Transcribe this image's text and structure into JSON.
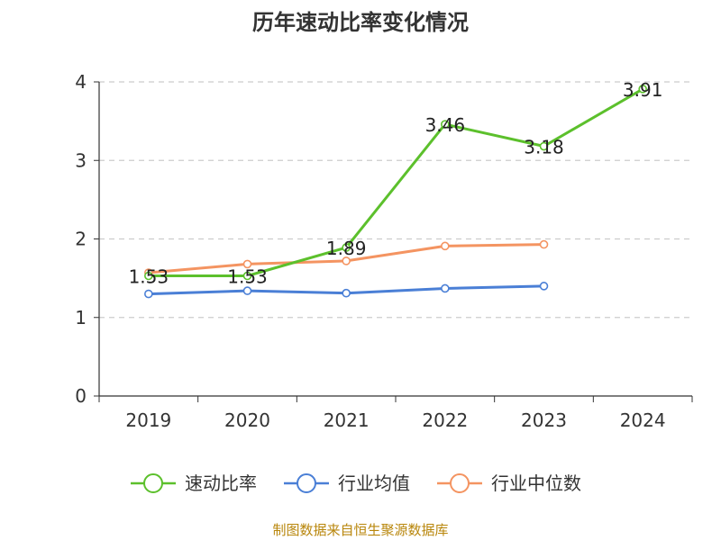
{
  "chart_data": {
    "type": "line",
    "title": "历年速动比率变化情况",
    "categories": [
      "2019",
      "2020",
      "2021",
      "2022",
      "2023",
      "2024"
    ],
    "ylim": [
      0,
      4
    ],
    "yticks": [
      "0",
      "1",
      "2",
      "3",
      "4"
    ],
    "grid": true,
    "legend_position": "bottom",
    "series": [
      {
        "name": "速动比率",
        "color": "#5cc02c",
        "values": [
          1.53,
          1.53,
          1.89,
          3.46,
          3.18,
          3.91
        ],
        "labels": [
          "1.53",
          "1.53",
          "1.89",
          "3.46",
          "3.18",
          "3.91"
        ]
      },
      {
        "name": "行业均值",
        "color": "#4a7fd6",
        "values": [
          1.3,
          1.34,
          1.31,
          1.37,
          1.4,
          null
        ]
      },
      {
        "name": "行业中位数",
        "color": "#f49461",
        "values": [
          1.57,
          1.68,
          1.72,
          1.91,
          1.93,
          null
        ]
      }
    ],
    "source": "制图数据来自恒生聚源数据库"
  }
}
